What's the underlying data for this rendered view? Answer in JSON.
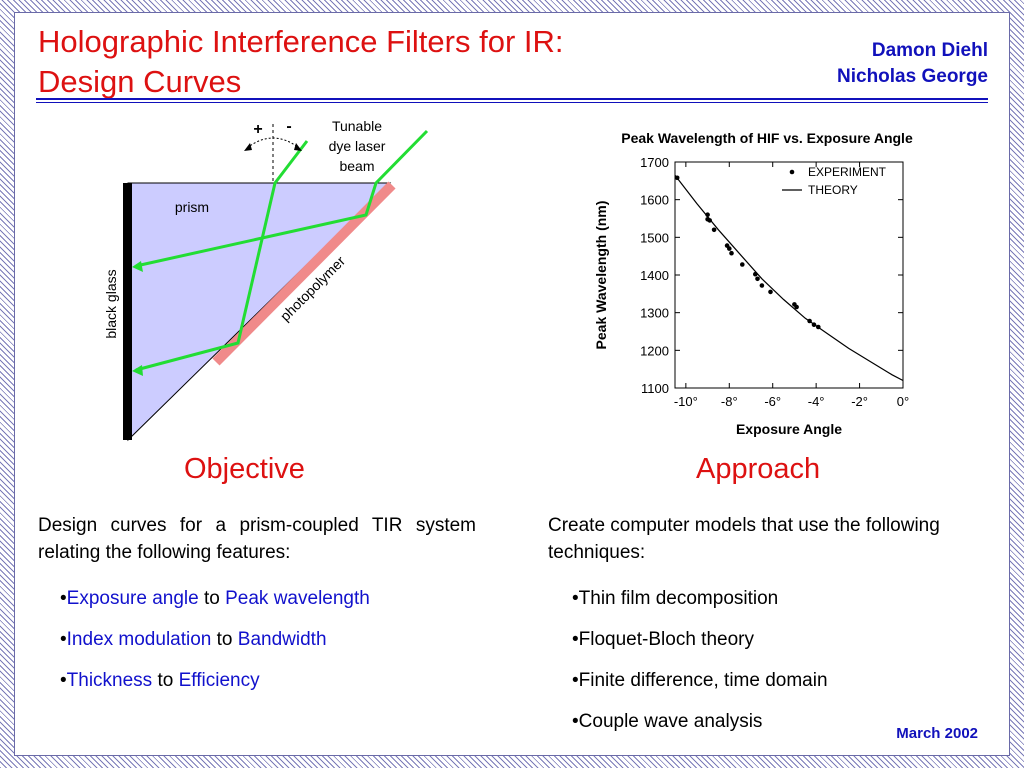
{
  "slide": {
    "title_line1": "Holographic Interference Filters for IR:",
    "title_line2": "Design Curves",
    "authors": [
      "Damon Diehl",
      "Nicholas George"
    ],
    "date": "March 2002"
  },
  "diagram": {
    "label_plus": "+",
    "label_minus": "-",
    "beam_label": [
      "Tunable",
      "dye laser",
      "beam"
    ],
    "prism_label": "prism",
    "black_glass_label": "black glass",
    "photopolymer_label": "photopolymer",
    "colors": {
      "prism_fill": "#ccccff",
      "beam": "#22dd33",
      "photopolymer": "#f08a8a",
      "black_glass": "#000000"
    }
  },
  "chart_data": {
    "type": "scatter",
    "title": "Peak Wavelength of HIF vs. Exposure Angle",
    "xlabel": "Exposure Angle",
    "ylabel": "Peak Wavelength (nm)",
    "xlim": [
      -10.5,
      0
    ],
    "ylim": [
      1100,
      1700
    ],
    "x_ticks": [
      -10,
      -8,
      -6,
      -4,
      -2,
      0
    ],
    "x_tick_labels": [
      "-10°",
      "-8°",
      "-6°",
      "-4°",
      "-2°",
      "0°"
    ],
    "y_ticks": [
      1100,
      1200,
      1300,
      1400,
      1500,
      1600,
      1700
    ],
    "y_tick_labels": [
      "1100",
      "1200",
      "1300",
      "1400",
      "1500",
      "1600",
      "1700"
    ],
    "legend_position": "top-right",
    "grid": false,
    "series": [
      {
        "name": "EXPERIMENT",
        "kind": "points",
        "points": [
          [
            -10.4,
            1658
          ],
          [
            -9.0,
            1560
          ],
          [
            -9.0,
            1548
          ],
          [
            -8.9,
            1545
          ],
          [
            -8.7,
            1520
          ],
          [
            -8.1,
            1478
          ],
          [
            -8.0,
            1470
          ],
          [
            -7.9,
            1458
          ],
          [
            -7.4,
            1428
          ],
          [
            -6.8,
            1402
          ],
          [
            -6.7,
            1390
          ],
          [
            -6.5,
            1372
          ],
          [
            -6.1,
            1355
          ],
          [
            -5.0,
            1322
          ],
          [
            -4.9,
            1315
          ],
          [
            -4.3,
            1278
          ],
          [
            -4.1,
            1268
          ],
          [
            -3.9,
            1262
          ]
        ]
      },
      {
        "name": "THEORY",
        "kind": "line",
        "points": [
          [
            -10.5,
            1665
          ],
          [
            -9.5,
            1590
          ],
          [
            -8.5,
            1520
          ],
          [
            -7.5,
            1455
          ],
          [
            -6.5,
            1390
          ],
          [
            -5.5,
            1335
          ],
          [
            -4.5,
            1285
          ],
          [
            -3.5,
            1245
          ],
          [
            -2.5,
            1205
          ],
          [
            -1.5,
            1170
          ],
          [
            -0.5,
            1135
          ],
          [
            0,
            1120
          ]
        ]
      }
    ]
  },
  "objective": {
    "heading": "Objective",
    "intro": "Design curves for a prism-coupled TIR system relating the following features:",
    "items": [
      {
        "a": "Exposure angle",
        "to": "to",
        "b": "Peak wavelength"
      },
      {
        "a": "Index modulation",
        "to": "to",
        "b": "Bandwidth"
      },
      {
        "a": "Thickness",
        "to": "to",
        "b": "Efficiency"
      }
    ]
  },
  "approach": {
    "heading": "Approach",
    "intro": "Create computer models that use the following techniques:",
    "items": [
      "Thin film decomposition",
      "Floquet-Bloch theory",
      "Finite difference, time domain",
      "Couple wave analysis"
    ]
  }
}
